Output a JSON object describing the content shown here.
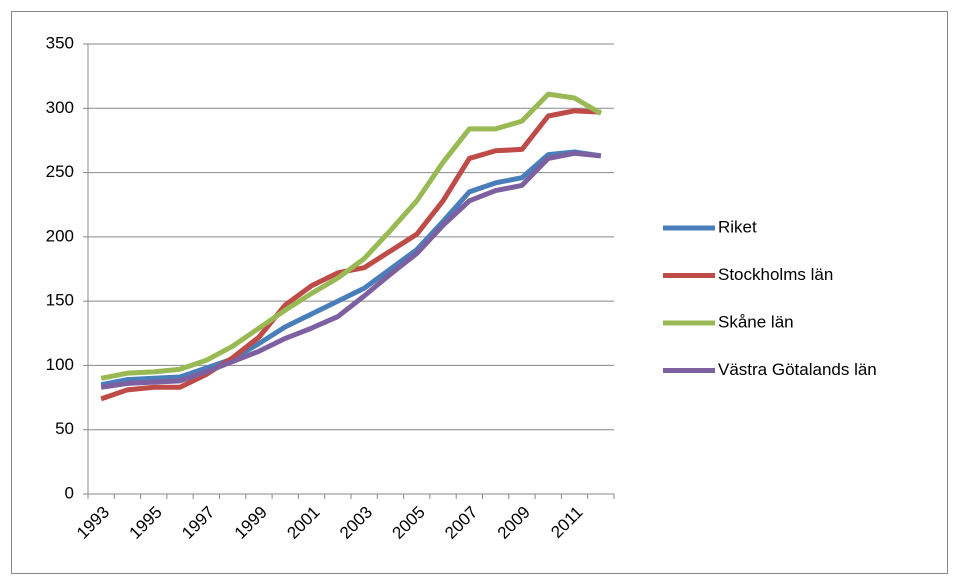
{
  "chart_data": {
    "type": "line",
    "categories": [
      "1993",
      null,
      "1995",
      null,
      "1997",
      null,
      "1999",
      null,
      "2001",
      null,
      "2003",
      null,
      "2005",
      null,
      "2007",
      null,
      "2009",
      null,
      "2011",
      null
    ],
    "series": [
      {
        "name": "Riket",
        "color": "#4a7ebb",
        "values": [
          85,
          89,
          90,
          91,
          98,
          105,
          117,
          130,
          140,
          150,
          160,
          175,
          190,
          212,
          235,
          242,
          246,
          264,
          266,
          263
        ]
      },
      {
        "name": "Stockholms län",
        "color": "#be4b48",
        "values": [
          74,
          81,
          83,
          83,
          93,
          106,
          122,
          147,
          162,
          172,
          176,
          189,
          202,
          228,
          261,
          267,
          268,
          294,
          298,
          297
        ]
      },
      {
        "name": "Skåne län",
        "color": "#98b954",
        "values": [
          90,
          94,
          95,
          97,
          104,
          115,
          129,
          143,
          156,
          168,
          183,
          205,
          228,
          258,
          284,
          284,
          290,
          311,
          308,
          296
        ]
      },
      {
        "name": "Västra Götalands län",
        "color": "#7d60a0",
        "values": [
          83,
          86,
          87,
          88,
          95,
          103,
          111,
          121,
          129,
          138,
          154,
          171,
          187,
          209,
          228,
          236,
          240,
          261,
          265,
          263
        ]
      }
    ],
    "ylim": [
      0,
      350
    ],
    "yticks": [
      0,
      50,
      100,
      150,
      200,
      250,
      300,
      350
    ],
    "grid": true,
    "legend": "right"
  }
}
